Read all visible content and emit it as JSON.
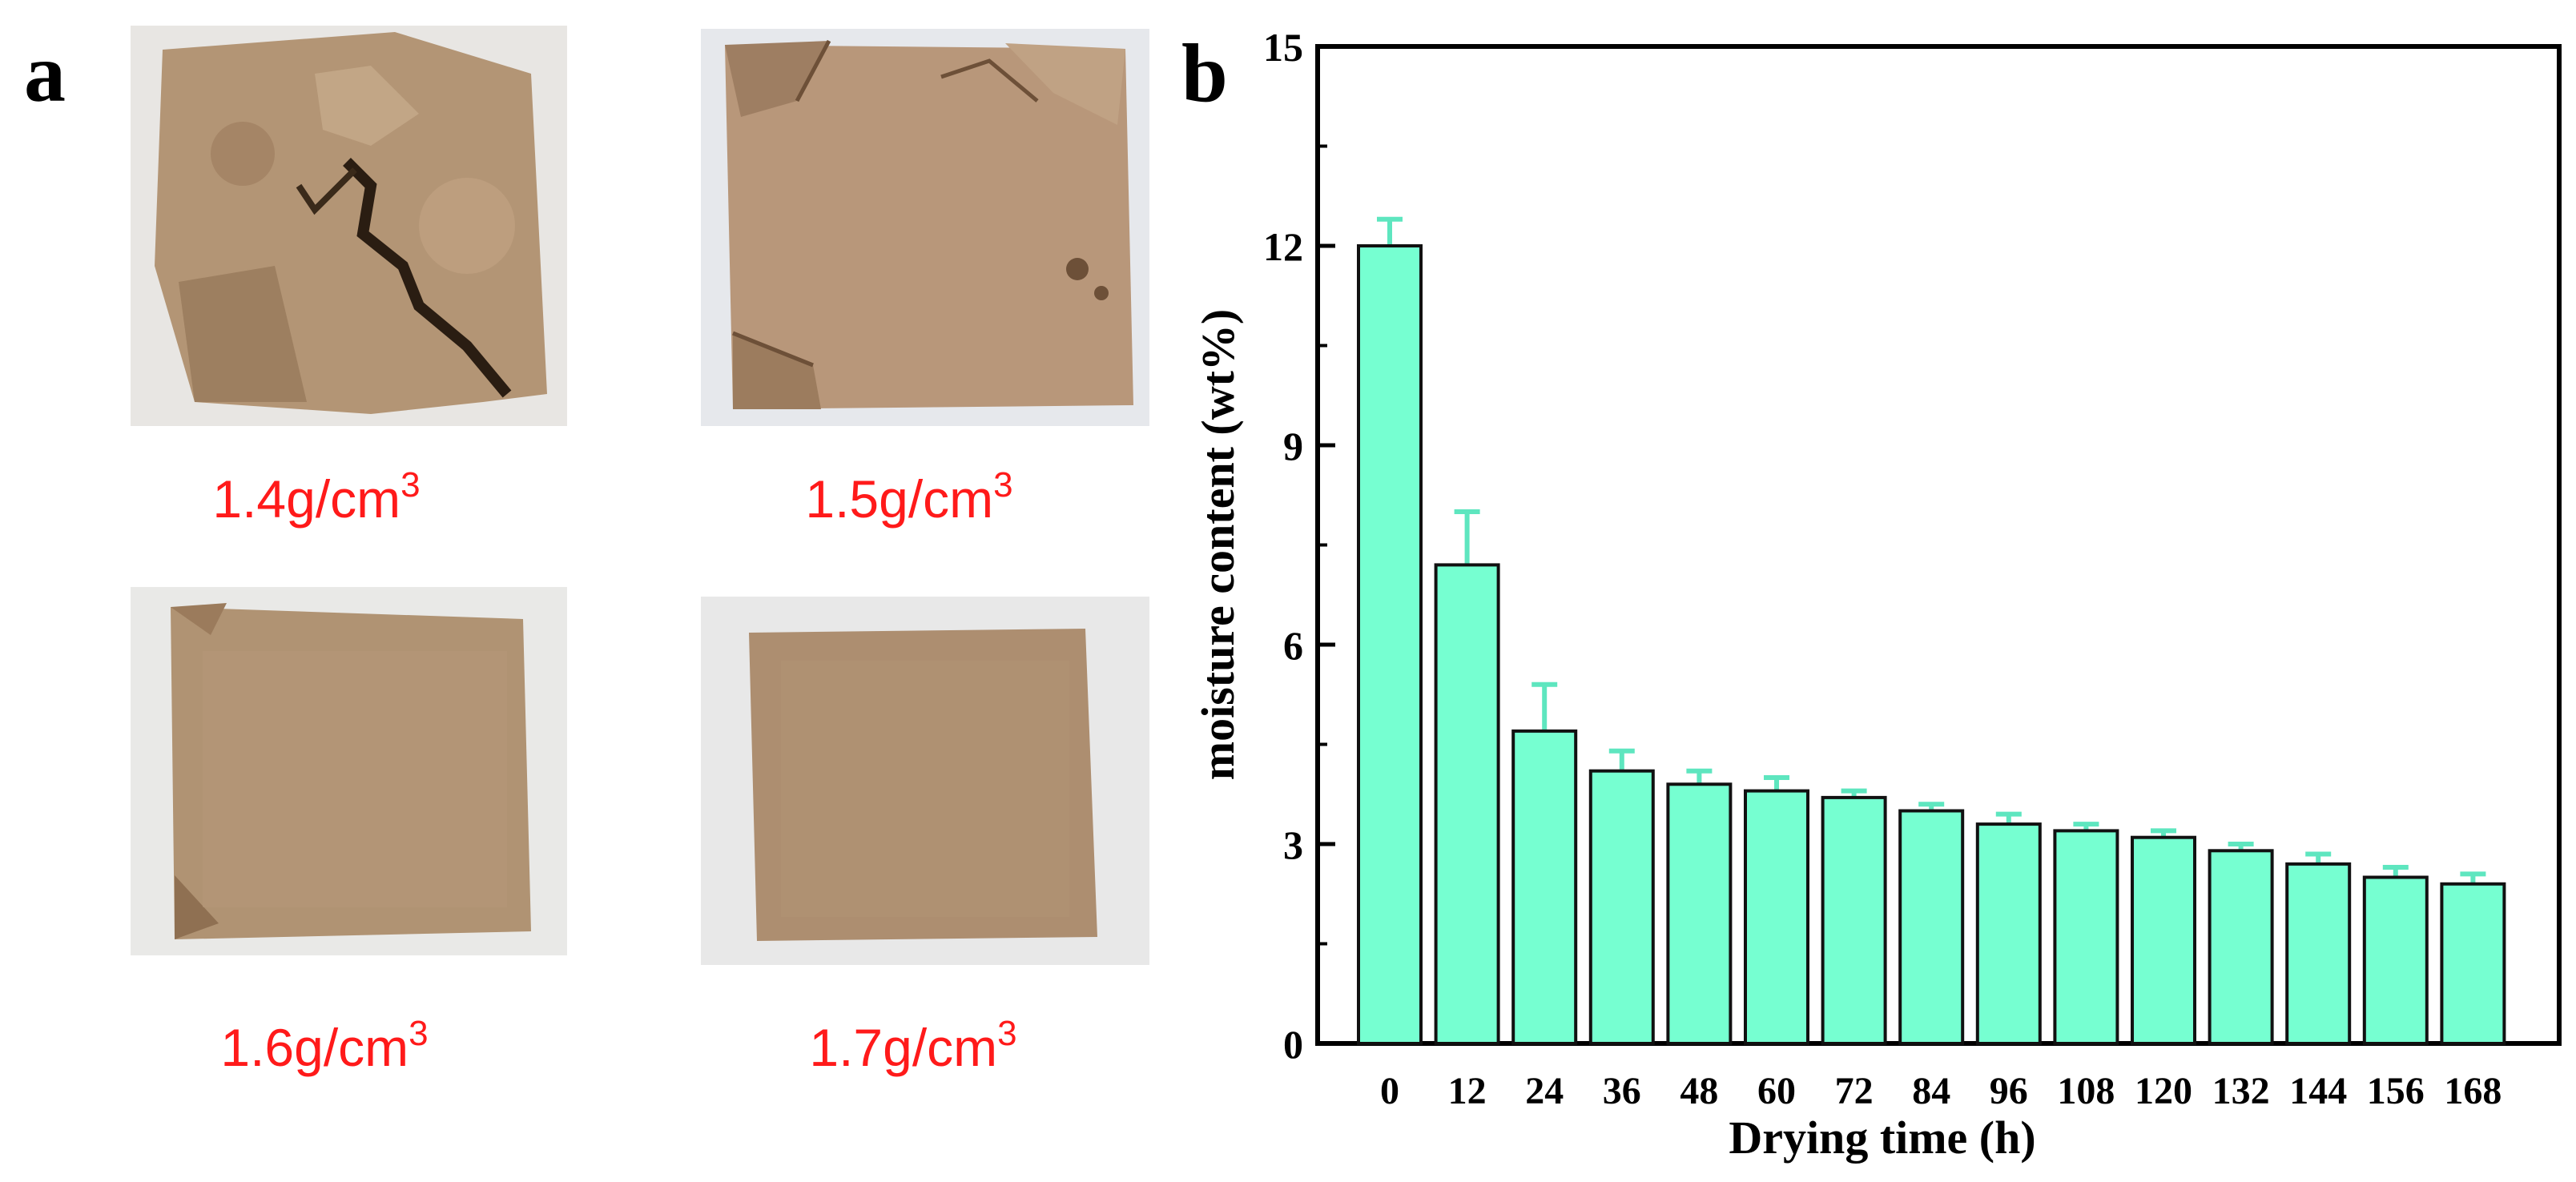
{
  "panel_a": {
    "label": "a",
    "samples": [
      {
        "name": "1.4",
        "density_value": "1.4g/cm",
        "unit_exp": "3",
        "condition": "cracked-crumbled"
      },
      {
        "name": "1.5",
        "density_value": "1.5g/cm",
        "unit_exp": "3",
        "condition": "edge-cracks"
      },
      {
        "name": "1.6",
        "density_value": "1.6g/cm",
        "unit_exp": "3",
        "condition": "intact"
      },
      {
        "name": "1.7",
        "density_value": "1.7g/cm",
        "unit_exp": "3",
        "condition": "intact"
      }
    ]
  },
  "panel_b": {
    "label": "b"
  },
  "colors": {
    "bar_fill": "#76ffd1",
    "bar_stroke": "#111111",
    "error_bar": "#5ee6bf",
    "density_text": "#ff1a1a",
    "soil": "#b09272",
    "photo_bg": "#e9e9e9"
  },
  "chart_data": {
    "type": "bar",
    "title": "",
    "xlabel": "Drying time (h)",
    "ylabel": "moisture content (wt%)",
    "categories": [
      "0",
      "12",
      "24",
      "36",
      "48",
      "60",
      "72",
      "84",
      "96",
      "108",
      "120",
      "132",
      "144",
      "156",
      "168"
    ],
    "values": [
      12.0,
      7.2,
      4.7,
      4.1,
      3.9,
      3.8,
      3.7,
      3.5,
      3.3,
      3.2,
      3.1,
      2.9,
      2.7,
      2.5,
      2.4
    ],
    "errors": [
      0.4,
      0.8,
      0.7,
      0.3,
      0.2,
      0.2,
      0.1,
      0.1,
      0.15,
      0.1,
      0.1,
      0.1,
      0.15,
      0.15,
      0.15
    ],
    "ylim": [
      0,
      15
    ],
    "yticks": [
      0,
      3,
      6,
      9,
      12,
      15
    ]
  }
}
